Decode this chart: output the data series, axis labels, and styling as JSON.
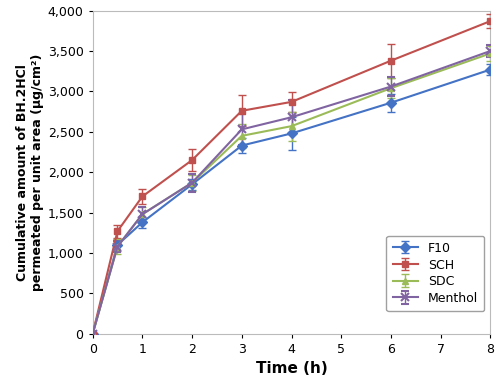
{
  "time": [
    0,
    0.5,
    1,
    2,
    3,
    4,
    6,
    8
  ],
  "F10": [
    0,
    1100,
    1380,
    1850,
    2330,
    2480,
    2860,
    3270
  ],
  "F10_err": [
    0,
    70,
    70,
    70,
    90,
    200,
    110,
    70
  ],
  "SCH": [
    0,
    1270,
    1700,
    2150,
    2760,
    2870,
    3380,
    3870
  ],
  "SCH_err": [
    0,
    80,
    90,
    140,
    190,
    120,
    210,
    90
  ],
  "SDC": [
    0,
    1080,
    1480,
    1870,
    2450,
    2570,
    3040,
    3470
  ],
  "SDC_err": [
    0,
    95,
    85,
    100,
    150,
    180,
    120,
    90
  ],
  "Menthol": [
    0,
    1080,
    1480,
    1870,
    2530,
    2680,
    3060,
    3500
  ],
  "Menthol_err": [
    0,
    70,
    90,
    110,
    190,
    210,
    120,
    70
  ],
  "colors": {
    "F10": "#4472C4",
    "SCH": "#C0504D",
    "SDC": "#9BBB59",
    "Menthol": "#8064A2"
  },
  "markers": {
    "F10": "D",
    "SCH": "s",
    "SDC": "^",
    "Menthol": "x"
  },
  "xlabel": "Time (h)",
  "ylabel": "Cumulative amount of BH.2HCl\npermeated per unit area (μg/cm²)",
  "ylim": [
    0,
    4000
  ],
  "xlim": [
    0,
    8
  ],
  "yticks": [
    0,
    500,
    1000,
    1500,
    2000,
    2500,
    3000,
    3500,
    4000
  ],
  "xticks": [
    0,
    1,
    2,
    3,
    4,
    5,
    6,
    7,
    8
  ],
  "bg_color": "#ffffff"
}
